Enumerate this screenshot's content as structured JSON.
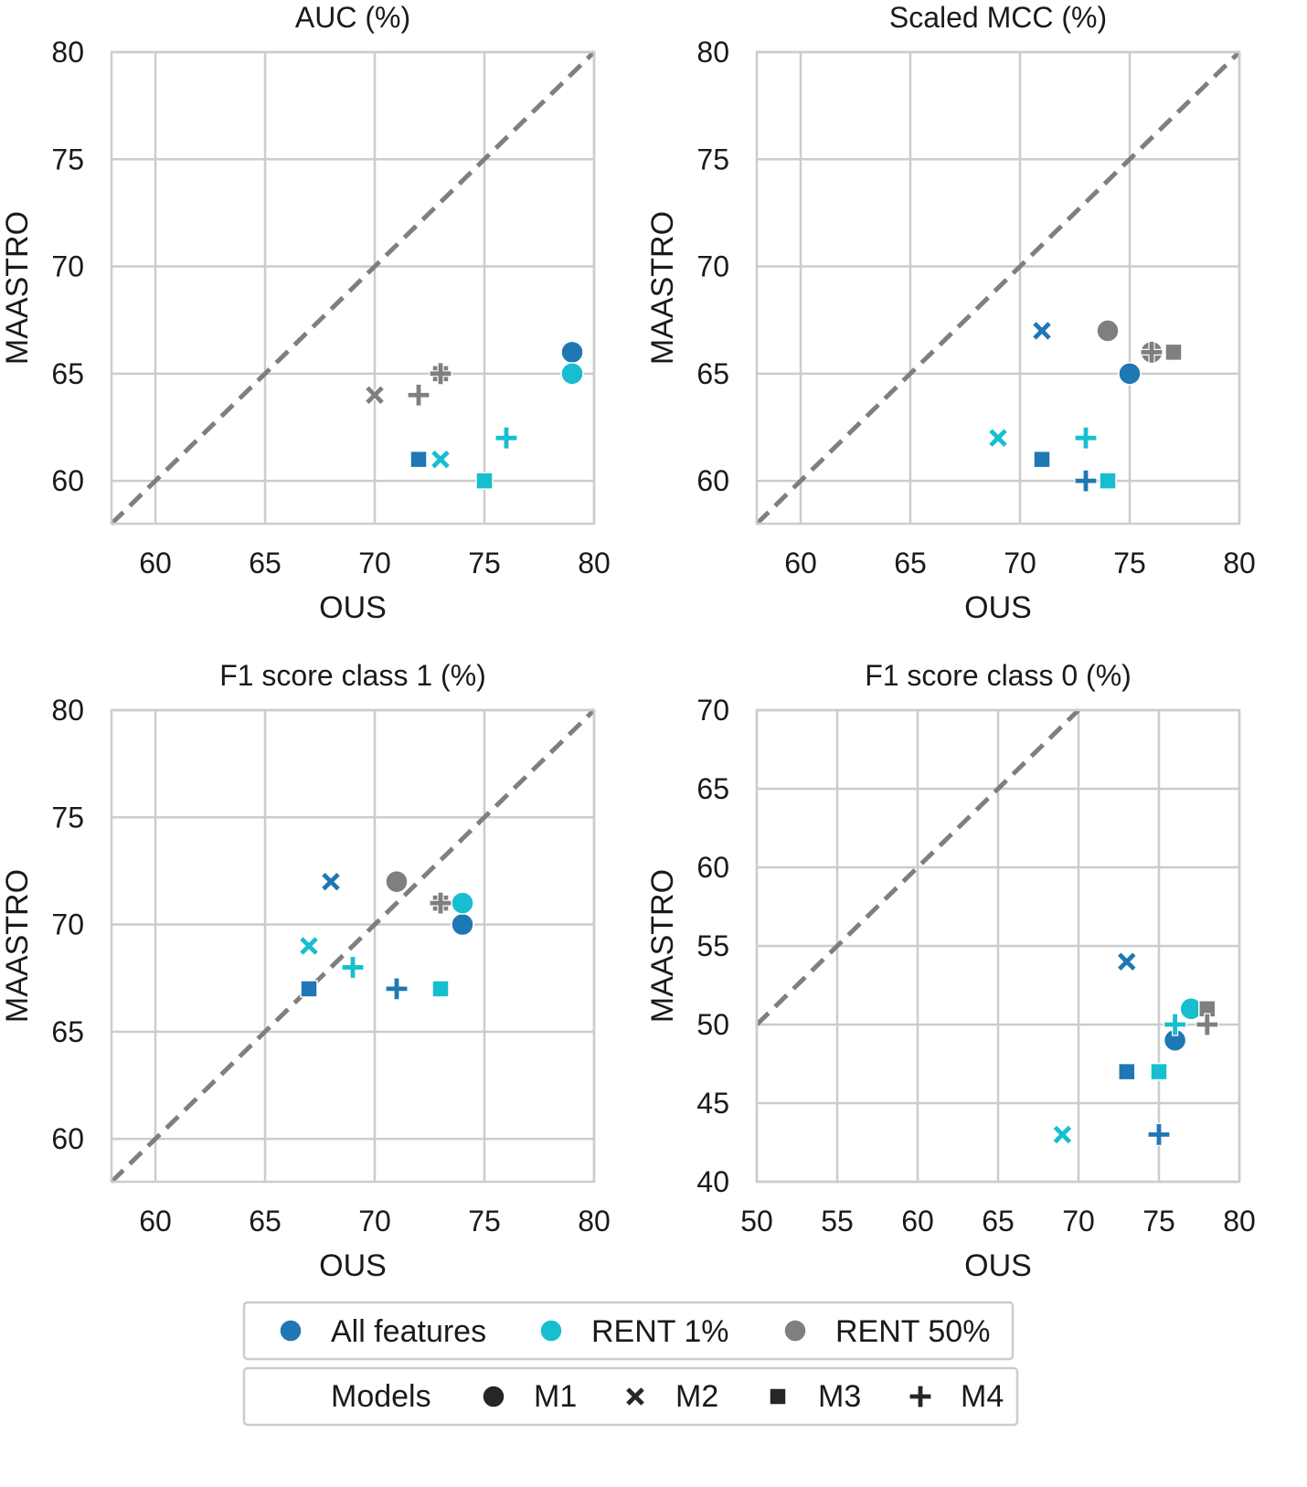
{
  "colors": {
    "All features": "#1f77b4",
    "RENT 1%": "#17becf",
    "RENT 50%": "#7f7f7f",
    "grid": "#cccccc",
    "diagonal": "#7f7f7f",
    "model_marker": "#262626"
  },
  "chart_data": [
    {
      "type": "scatter",
      "title": "AUC (%)",
      "xlabel": "OUS",
      "ylabel": "MAASTRO",
      "xlim": [
        58,
        80
      ],
      "ylim": [
        58,
        80
      ],
      "xticks": [
        60,
        65,
        70,
        75,
        80
      ],
      "yticks": [
        60,
        65,
        70,
        75,
        80
      ],
      "grid": true,
      "diagonal": "y = x (dashed)",
      "points": [
        {
          "group": "All features",
          "model": "M1",
          "x": 79,
          "y": 66
        },
        {
          "group": "All features",
          "model": "M3",
          "x": 72,
          "y": 61
        },
        {
          "group": "RENT 1%",
          "model": "M1",
          "x": 79,
          "y": 65
        },
        {
          "group": "RENT 1%",
          "model": "M2",
          "x": 73,
          "y": 61
        },
        {
          "group": "RENT 1%",
          "model": "M3",
          "x": 75,
          "y": 60
        },
        {
          "group": "RENT 1%",
          "model": "M4",
          "x": 76,
          "y": 62
        },
        {
          "group": "RENT 50%",
          "model": "M2",
          "x": 70,
          "y": 64
        },
        {
          "group": "RENT 50%",
          "model": "M4",
          "x": 72,
          "y": 64
        },
        {
          "group": "RENT 50%",
          "model": "M3",
          "x": 73,
          "y": 65
        },
        {
          "group": "RENT 50%",
          "model": "M4",
          "x": 73,
          "y": 65
        }
      ]
    },
    {
      "type": "scatter",
      "title": "Scaled MCC (%)",
      "xlabel": "OUS",
      "ylabel": "MAASTRO",
      "xlim": [
        58,
        80
      ],
      "ylim": [
        58,
        80
      ],
      "xticks": [
        60,
        65,
        70,
        75,
        80
      ],
      "yticks": [
        60,
        65,
        70,
        75,
        80
      ],
      "grid": true,
      "diagonal": "y = x (dashed)",
      "points": [
        {
          "group": "All features",
          "model": "M1",
          "x": 75,
          "y": 65
        },
        {
          "group": "All features",
          "model": "M2",
          "x": 71,
          "y": 67
        },
        {
          "group": "All features",
          "model": "M3",
          "x": 71,
          "y": 61
        },
        {
          "group": "All features",
          "model": "M4",
          "x": 73,
          "y": 60
        },
        {
          "group": "RENT 1%",
          "model": "M2",
          "x": 69,
          "y": 62
        },
        {
          "group": "RENT 1%",
          "model": "M4",
          "x": 73,
          "y": 62
        },
        {
          "group": "RENT 1%",
          "model": "M3",
          "x": 74,
          "y": 60
        },
        {
          "group": "RENT 50%",
          "model": "M1",
          "x": 74,
          "y": 67
        },
        {
          "group": "RENT 50%",
          "model": "M1",
          "x": 76,
          "y": 66
        },
        {
          "group": "RENT 50%",
          "model": "M4",
          "x": 76,
          "y": 66
        },
        {
          "group": "RENT 50%",
          "model": "M3",
          "x": 77,
          "y": 66
        }
      ]
    },
    {
      "type": "scatter",
      "title": "F1 score class 1 (%)",
      "xlabel": "OUS",
      "ylabel": "MAASTRO",
      "xlim": [
        58,
        80
      ],
      "ylim": [
        58,
        80
      ],
      "xticks": [
        60,
        65,
        70,
        75,
        80
      ],
      "yticks": [
        60,
        65,
        70,
        75,
        80
      ],
      "grid": true,
      "diagonal": "y = x (dashed)",
      "points": [
        {
          "group": "All features",
          "model": "M2",
          "x": 68,
          "y": 72
        },
        {
          "group": "All features",
          "model": "M1",
          "x": 74,
          "y": 70
        },
        {
          "group": "All features",
          "model": "M3",
          "x": 67,
          "y": 67
        },
        {
          "group": "All features",
          "model": "M4",
          "x": 71,
          "y": 67
        },
        {
          "group": "RENT 1%",
          "model": "M2",
          "x": 67,
          "y": 69
        },
        {
          "group": "RENT 1%",
          "model": "M4",
          "x": 69,
          "y": 68
        },
        {
          "group": "RENT 1%",
          "model": "M1",
          "x": 74,
          "y": 71
        },
        {
          "group": "RENT 1%",
          "model": "M3",
          "x": 73,
          "y": 67
        },
        {
          "group": "RENT 50%",
          "model": "M1",
          "x": 71,
          "y": 72
        },
        {
          "group": "RENT 50%",
          "model": "M3",
          "x": 73,
          "y": 71
        },
        {
          "group": "RENT 50%",
          "model": "M4",
          "x": 73,
          "y": 71
        }
      ]
    },
    {
      "type": "scatter",
      "title": "F1 score class 0 (%)",
      "xlabel": "OUS",
      "ylabel": "MAASTRO",
      "xlim": [
        50,
        80
      ],
      "ylim": [
        40,
        70
      ],
      "xticks": [
        50,
        55,
        60,
        65,
        70,
        75,
        80
      ],
      "yticks": [
        40,
        45,
        50,
        55,
        60,
        65,
        70
      ],
      "grid": true,
      "diagonal": "y = x (dashed)",
      "points": [
        {
          "group": "All features",
          "model": "M2",
          "x": 73,
          "y": 54
        },
        {
          "group": "All features",
          "model": "M1",
          "x": 76,
          "y": 49
        },
        {
          "group": "All features",
          "model": "M3",
          "x": 73,
          "y": 47
        },
        {
          "group": "All features",
          "model": "M4",
          "x": 75,
          "y": 43
        },
        {
          "group": "RENT 1%",
          "model": "M1",
          "x": 77,
          "y": 51
        },
        {
          "group": "RENT 1%",
          "model": "M4",
          "x": 76,
          "y": 50
        },
        {
          "group": "RENT 1%",
          "model": "M3",
          "x": 75,
          "y": 47
        },
        {
          "group": "RENT 1%",
          "model": "M2",
          "x": 69,
          "y": 43
        },
        {
          "group": "RENT 50%",
          "model": "M3",
          "x": 78,
          "y": 51
        },
        {
          "group": "RENT 50%",
          "model": "M4",
          "x": 78,
          "y": 50
        }
      ]
    }
  ],
  "legend": {
    "groups": [
      {
        "label": "All features",
        "marker": "circle"
      },
      {
        "label": "RENT 1%",
        "marker": "circle"
      },
      {
        "label": "RENT 50%",
        "marker": "circle"
      }
    ],
    "models_title": "Models",
    "models": [
      {
        "label": "M1",
        "marker": "circle"
      },
      {
        "label": "M2",
        "marker": "x"
      },
      {
        "label": "M3",
        "marker": "square"
      },
      {
        "label": "M4",
        "marker": "plus"
      }
    ],
    "placement": "bottom-center"
  }
}
